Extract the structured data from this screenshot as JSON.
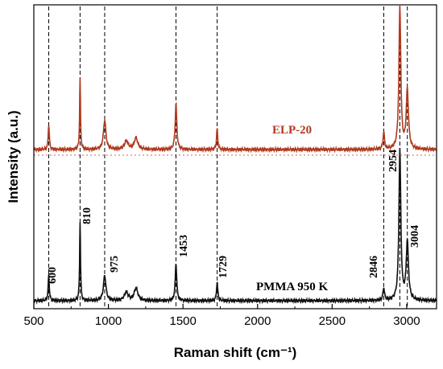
{
  "chart_data": {
    "type": "line",
    "xlabel": "Raman shift (cm⁻¹)",
    "ylabel": "Intensity (a.u.)",
    "xlim": [
      500,
      3200
    ],
    "x_ticks": [
      500,
      1000,
      1500,
      2000,
      2500,
      3000
    ],
    "y_ticks_shown": false,
    "grid": false,
    "peak_markers": [
      600,
      810,
      975,
      1453,
      1729,
      2846,
      2954,
      3004
    ],
    "peak_labels": [
      "600",
      "810",
      "975",
      "1453",
      "1729",
      "2846",
      "2954",
      "3004"
    ],
    "series": [
      {
        "name": "ELP-20",
        "color": "#b03a1e",
        "baseline": 0.0,
        "peaks": [
          {
            "x": 600,
            "height": 0.06,
            "width": 9
          },
          {
            "x": 810,
            "height": 0.17,
            "width": 7
          },
          {
            "x": 975,
            "height": 0.07,
            "width": 20
          },
          {
            "x": 1120,
            "height": 0.02,
            "width": 30
          },
          {
            "x": 1185,
            "height": 0.028,
            "width": 28
          },
          {
            "x": 1453,
            "height": 0.11,
            "width": 13
          },
          {
            "x": 1729,
            "height": 0.05,
            "width": 10
          },
          {
            "x": 2846,
            "height": 0.04,
            "width": 12
          },
          {
            "x": 2954,
            "height": 0.34,
            "width": 15
          },
          {
            "x": 3004,
            "height": 0.14,
            "width": 18
          }
        ]
      },
      {
        "name": "PMMA 950 K",
        "color": "#111111",
        "baseline": 0.0,
        "peaks": [
          {
            "x": 600,
            "height": 0.06,
            "width": 9
          },
          {
            "x": 810,
            "height": 0.19,
            "width": 7
          },
          {
            "x": 975,
            "height": 0.06,
            "width": 20
          },
          {
            "x": 1120,
            "height": 0.02,
            "width": 30
          },
          {
            "x": 1185,
            "height": 0.03,
            "width": 28
          },
          {
            "x": 1453,
            "height": 0.09,
            "width": 12
          },
          {
            "x": 1729,
            "height": 0.045,
            "width": 10
          },
          {
            "x": 2846,
            "height": 0.03,
            "width": 12
          },
          {
            "x": 2954,
            "height": 0.36,
            "width": 15
          },
          {
            "x": 3004,
            "height": 0.14,
            "width": 18
          }
        ]
      }
    ]
  }
}
